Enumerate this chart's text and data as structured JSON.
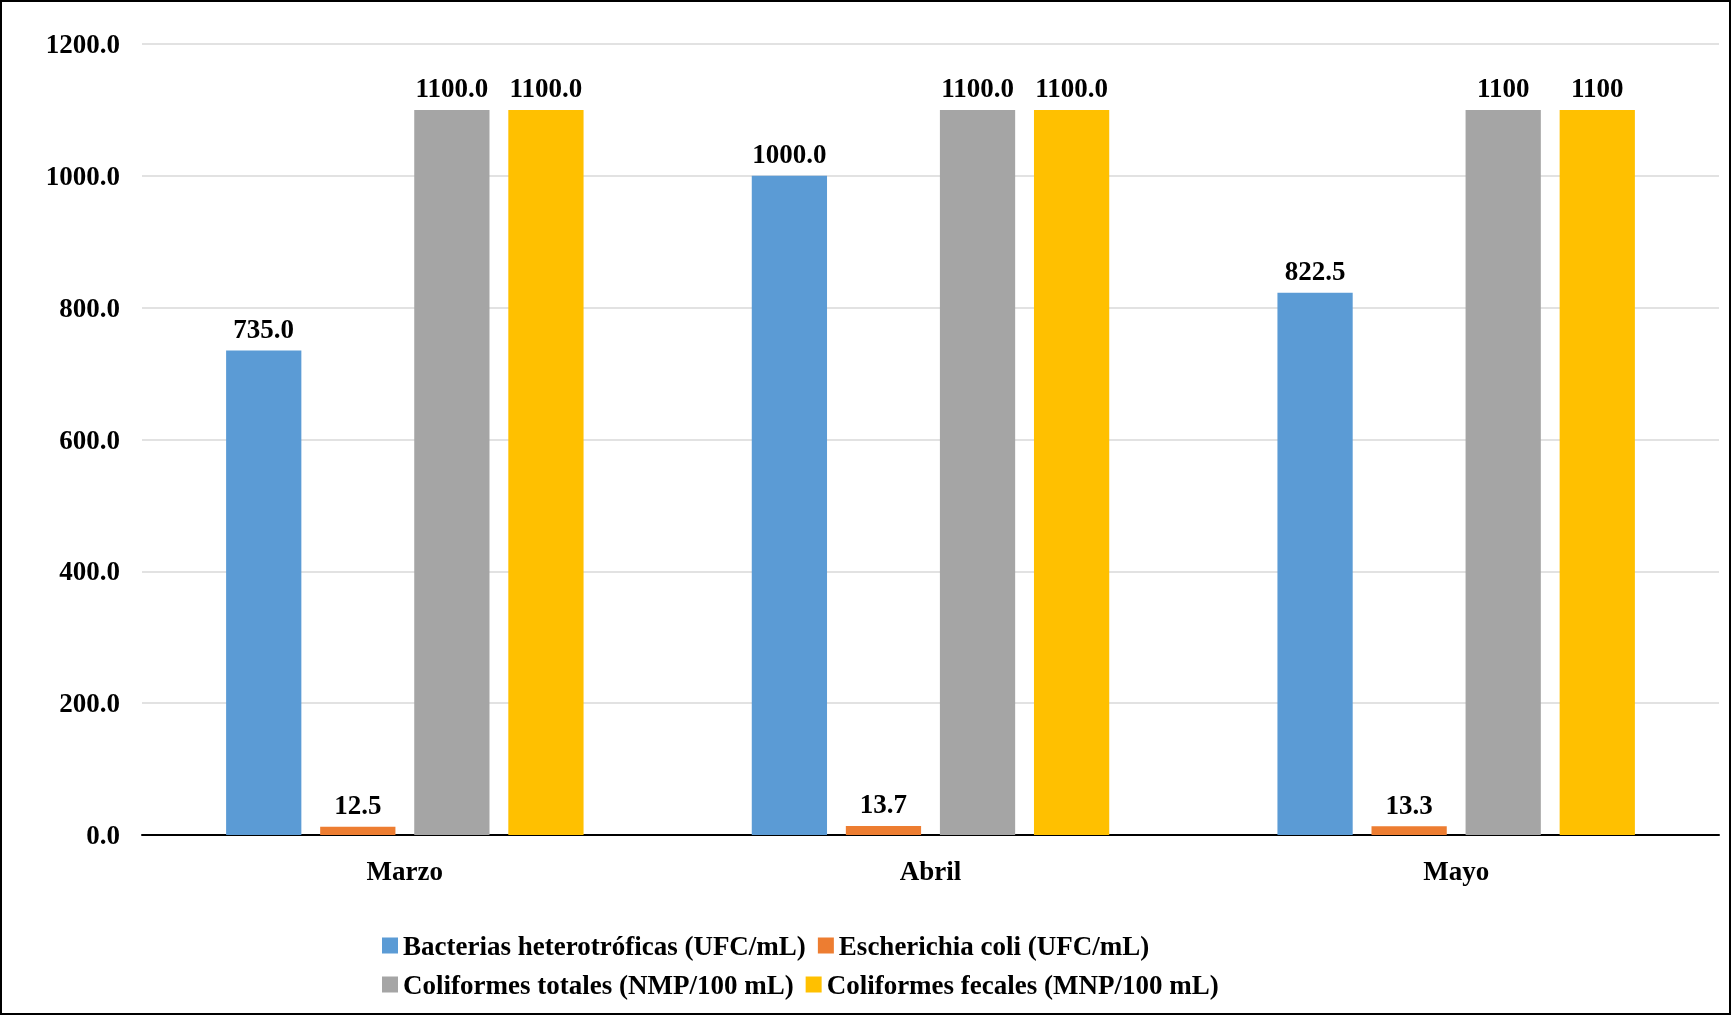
{
  "chart_data": {
    "type": "bar",
    "categories": [
      "Marzo",
      "Abril",
      "Mayo"
    ],
    "series": [
      {
        "name": "Bacterias heterotróficas (UFC/mL)",
        "color": "#5b9bd5",
        "values": [
          735.0,
          1000.0,
          822.5
        ],
        "value_labels": [
          "735.0",
          "1000.0",
          "822.5"
        ]
      },
      {
        "name": "Escherichia coli (UFC/mL)",
        "color": "#ed7d31",
        "values": [
          12.5,
          13.7,
          13.3
        ],
        "value_labels": [
          "12.5",
          "13.7",
          "13.3"
        ]
      },
      {
        "name": "Coliformes totales (NMP/100 mL)",
        "color": "#a5a5a5",
        "values": [
          1100,
          1100,
          1100
        ],
        "value_labels": [
          "1100.0",
          "1100.0",
          "1100"
        ]
      },
      {
        "name": "Coliformes fecales (MNP/100 mL)",
        "color": "#ffc000",
        "values": [
          1100,
          1100,
          1100
        ],
        "value_labels": [
          "1100.0",
          "1100.0",
          "1100"
        ]
      }
    ],
    "ylim": [
      0,
      1200
    ],
    "yticks": [
      {
        "value": 0,
        "label": "0.0"
      },
      {
        "value": 200,
        "label": "200.0"
      },
      {
        "value": 400,
        "label": "400.0"
      },
      {
        "value": 600,
        "label": "600.0"
      },
      {
        "value": 800,
        "label": "800.0"
      },
      {
        "value": 1000,
        "label": "1000.0"
      },
      {
        "value": 1200,
        "label": "1200.0"
      }
    ],
    "grid": "y",
    "legend": "bottom"
  }
}
